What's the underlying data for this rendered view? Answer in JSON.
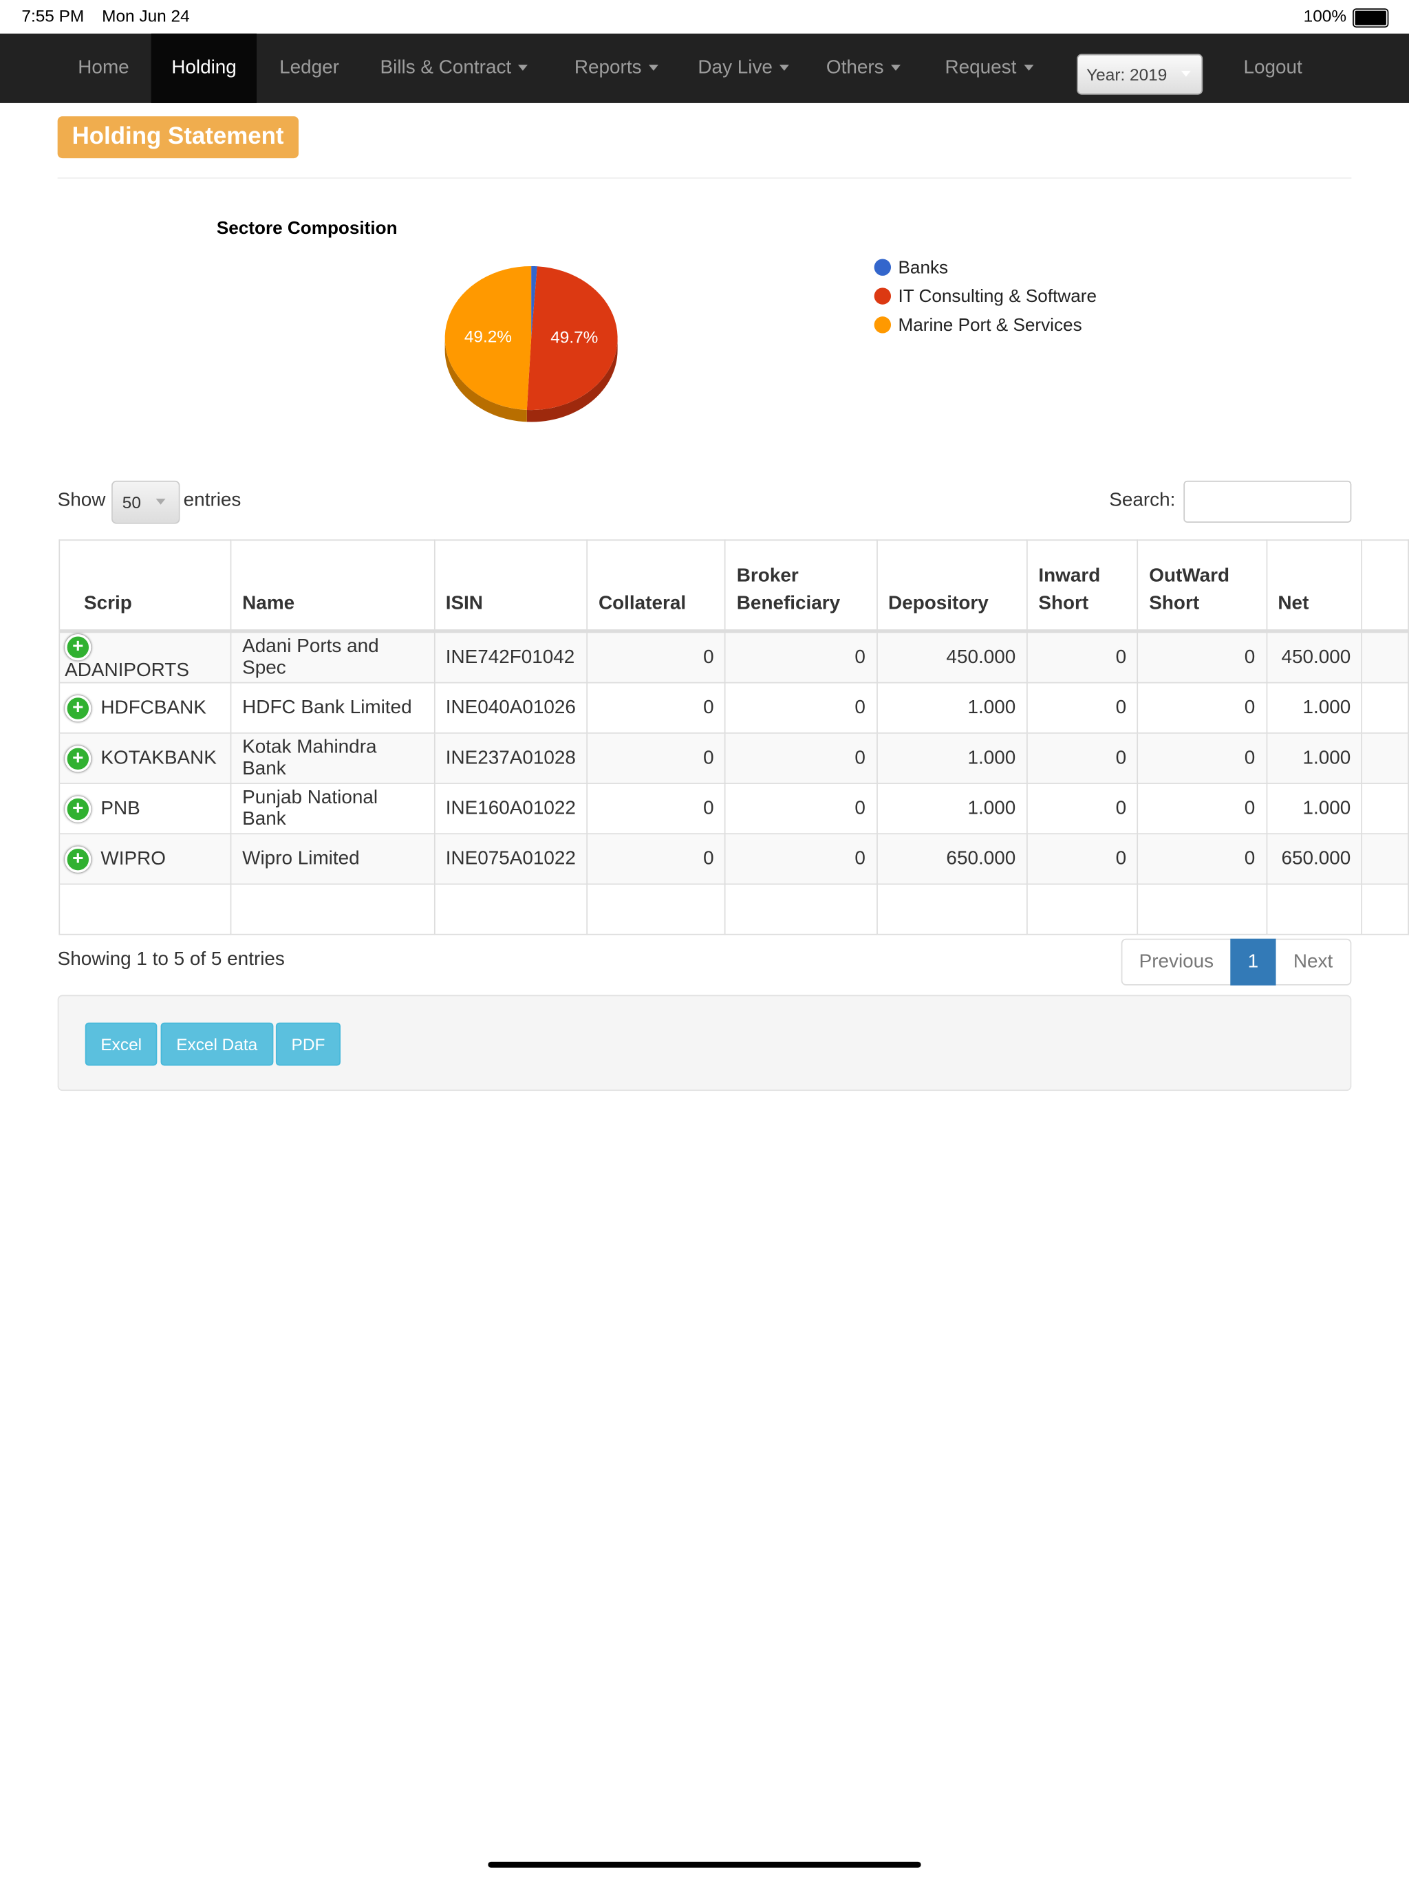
{
  "status_bar": {
    "time": "7:55 PM",
    "date": "Mon Jun 24",
    "battery": "100%"
  },
  "nav": {
    "items": [
      {
        "label": "Home",
        "dropdown": false
      },
      {
        "label": "Holding",
        "dropdown": false,
        "active": true
      },
      {
        "label": "Ledger",
        "dropdown": false
      },
      {
        "label": "Bills & Contract",
        "dropdown": true
      },
      {
        "label": "Reports",
        "dropdown": true
      },
      {
        "label": "Day Live",
        "dropdown": true
      },
      {
        "label": "Others",
        "dropdown": true
      },
      {
        "label": "Request",
        "dropdown": true
      }
    ],
    "year": "Year: 2019",
    "logout": "Logout"
  },
  "header": {
    "title": "Holding Statement"
  },
  "chart_data": {
    "type": "pie",
    "title": "Sectore Composition",
    "categories": [
      "Banks",
      "IT Consulting & Software",
      "Marine Port & Services"
    ],
    "values": [
      1.1,
      49.7,
      49.2
    ],
    "value_labels": [
      null,
      "49.7%",
      "49.2%"
    ],
    "colors": [
      "#3366cc",
      "#dc3912",
      "#ff9900"
    ],
    "legend": "right"
  },
  "controls": {
    "show": "Show",
    "page_size": "50",
    "entries": "entries",
    "search": "Search:"
  },
  "table": {
    "columns": [
      "Scrip",
      "Name",
      "ISIN",
      "Collateral",
      "Broker Beneficiary",
      "Depository",
      "Inward Short",
      "OutWard Short",
      "Net"
    ],
    "rows": [
      [
        "ADANIPORTS",
        "Adani Ports and Spec",
        "INE742F01042",
        "0",
        "0",
        "450.000",
        "0",
        "0",
        "450.000"
      ],
      [
        "HDFCBANK",
        "HDFC Bank Limited",
        "INE040A01026",
        "0",
        "0",
        "1.000",
        "0",
        "0",
        "1.000"
      ],
      [
        "KOTAKBANK",
        "Kotak Mahindra Bank",
        "INE237A01028",
        "0",
        "0",
        "1.000",
        "0",
        "0",
        "1.000"
      ],
      [
        "PNB",
        "Punjab National Bank",
        "INE160A01022",
        "0",
        "0",
        "1.000",
        "0",
        "0",
        "1.000"
      ],
      [
        "WIPRO",
        "Wipro Limited",
        "INE075A01022",
        "0",
        "0",
        "650.000",
        "0",
        "0",
        "650.000"
      ]
    ]
  },
  "footer": {
    "info": "Showing 1 to 5 of 5 entries",
    "previous": "Previous",
    "page": "1",
    "next": "Next",
    "buttons": [
      "Excel",
      "Excel Data",
      "PDF"
    ]
  }
}
